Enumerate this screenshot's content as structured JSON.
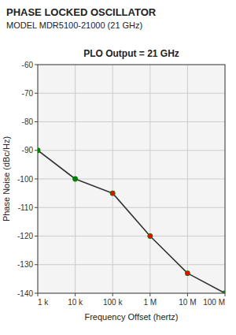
{
  "chart_data": {
    "type": "line",
    "title": "PLO Output = 21 GHz",
    "annotations": [
      "PHASE LOCKED OSCILLATOR",
      "MODEL MDR5100-21000 (21 GHz)"
    ],
    "x_label": "Frequency Offset (hertz)",
    "y_label": "Phase Noise (dBc/Hz)",
    "log": "x",
    "grid": true,
    "xlim": [
      1000,
      100000000
    ],
    "ylim": [
      -140,
      -60
    ],
    "xticks": [
      {
        "value": 1000,
        "label": "1 k"
      },
      {
        "value": 10000,
        "label": "10 k"
      },
      {
        "value": 100000,
        "label": "100 k"
      },
      {
        "value": 1000000,
        "label": "1 M"
      },
      {
        "value": 10000000,
        "label": "10 M"
      },
      {
        "value": 100000000,
        "label": "100 M"
      }
    ],
    "yticks": [
      -60,
      -70,
      -80,
      -90,
      -100,
      -110,
      -120,
      -130,
      -140
    ],
    "series": [
      {
        "type": "line",
        "color": "#333333",
        "x": [
          1000,
          10000,
          100000,
          1000000,
          10000000,
          100000000
        ],
        "values": [
          -90,
          -100,
          -105,
          -120,
          -133,
          -140
        ]
      },
      {
        "type": "scatter",
        "color": "green",
        "marker": "circle",
        "x": [
          1000,
          10000,
          100000,
          1000000,
          10000000,
          100000000
        ],
        "values": [
          -90,
          -100,
          -105,
          -120,
          -133,
          -140
        ]
      },
      {
        "type": "scatter",
        "color": "red",
        "marker": "circle",
        "x": [
          100000,
          1000000,
          10000000
        ],
        "values": [
          -105,
          -120,
          -133
        ]
      }
    ]
  }
}
